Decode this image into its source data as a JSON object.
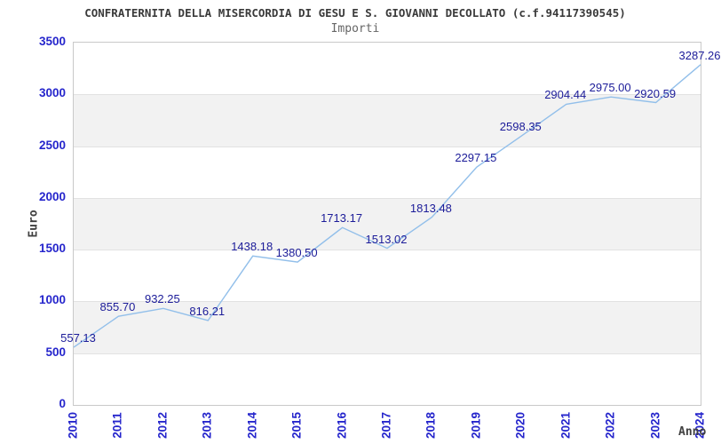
{
  "header": {
    "title": "CONFRATERNITA DELLA MISERCORDIA DI GESU E S. GIOVANNI DECOLLATO (c.f.94117390545)",
    "subtitle": "Importi"
  },
  "chart_data": {
    "type": "line",
    "title": "CONFRATERNITA DELLA MISERCORDIA DI GESU E S. GIOVANNI DECOLLATO (c.f.94117390545)",
    "subtitle": "Importi",
    "xlabel": "Anno",
    "ylabel": "Euro",
    "categories": [
      "2010",
      "2011",
      "2012",
      "2013",
      "2014",
      "2015",
      "2016",
      "2017",
      "2018",
      "2019",
      "2020",
      "2021",
      "2022",
      "2023",
      "2024"
    ],
    "series": [
      {
        "name": "Importi",
        "values": [
          557.13,
          855.7,
          932.25,
          816.21,
          1438.18,
          1380.5,
          1713.17,
          1513.02,
          1813.48,
          2297.15,
          2598.35,
          2904.44,
          2975.0,
          2920.59,
          3287.26
        ],
        "point_labels": [
          "557.13",
          "855.70",
          "932.25",
          "816.21",
          "1438.18",
          "1380.50",
          "1713.17",
          "1513.02",
          "1813.48",
          "2297.15",
          "2598.35",
          "2904.44",
          "2975.00",
          "2920.59",
          "3287.26"
        ]
      }
    ],
    "ylim": [
      0,
      3500
    ],
    "ytick_step": 500,
    "yticks": [
      0,
      500,
      1000,
      1500,
      2000,
      2500,
      3000,
      3500
    ],
    "grid": true,
    "alternating_bands": true,
    "legend": "none",
    "colors": {
      "line": "#92bfea",
      "point_label": "#1c1c99",
      "tick_label": "#2525cc",
      "band": "#f2f2f2",
      "grid": "#e2e2e2",
      "border": "#c9c9c9",
      "title": "#3a3a3a",
      "subtitle": "#666666",
      "axis_title": "#404040"
    }
  }
}
